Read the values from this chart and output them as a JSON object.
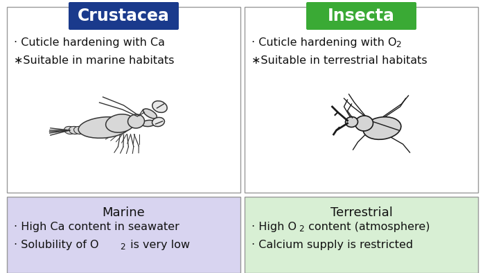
{
  "title_left": "Crustacea",
  "title_right": "Insecta",
  "title_left_color": "#1a3a8c",
  "title_right_color": "#3aaa35",
  "title_text_color": "#ffffff",
  "box_top_bg": "#ffffff",
  "box_left_bottom_bg": "#d8d4f0",
  "box_right_bottom_bg": "#d8efd4",
  "border_color": "#999999",
  "left_top_line1": "· Cuticle hardening with Ca",
  "left_top_line2": "∗Suitable in marine habitats",
  "right_top_line1": "· Cuticle hardening with O",
  "right_top_line1_sub": "2",
  "right_top_line2": "∗Suitable in terrestrial habitats",
  "left_bottom_header": "Marine",
  "right_bottom_header": "Terrestrial",
  "left_bottom_line1": "· High Ca content in seawater",
  "left_bottom_line2_main": "· Solubility of O",
  "left_bottom_line2_sub": "2",
  "left_bottom_line2_end": " is very low",
  "right_bottom_line1_main": "· High O",
  "right_bottom_line1_sub": "2",
  "right_bottom_line1_end": " content (atmosphere)",
  "right_bottom_line2": "· Calcium supply is restricted",
  "bg_color": "#ffffff",
  "main_text_color": "#111111",
  "font_size_title": 17,
  "font_size_body": 11.5,
  "font_size_header": 13
}
